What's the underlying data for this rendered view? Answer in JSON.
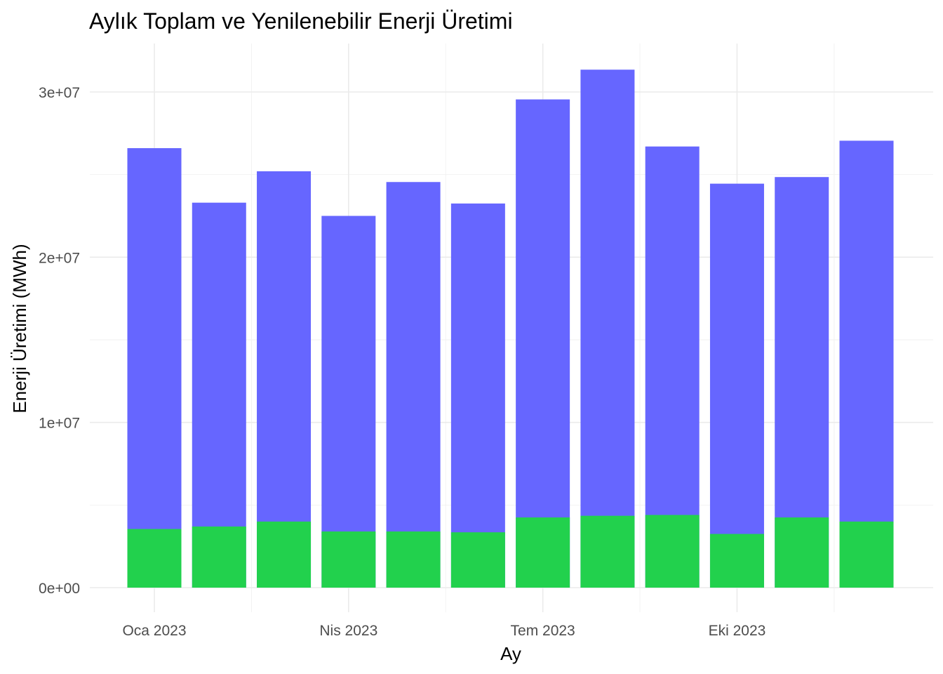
{
  "chart_data": {
    "type": "bar",
    "title": "Aylık Toplam ve Yenilenebilir Enerji Üretimi",
    "xlabel": "Ay",
    "ylabel": "Enerji Üretimi (MWh)",
    "x_tick_labels": [
      "Oca 2023",
      "Nis 2023",
      "Tem 2023",
      "Eki 2023"
    ],
    "y_tick_labels": [
      "0e+00",
      "1e+07",
      "2e+07",
      "3e+07"
    ],
    "y_ticks": [
      0,
      10000000,
      20000000,
      30000000
    ],
    "ylim": [
      -1500000,
      33000000
    ],
    "grid": true,
    "legend": "none",
    "categories": [
      "2023-01",
      "2023-02",
      "2023-03",
      "2023-04",
      "2023-05",
      "2023-06",
      "2023-07",
      "2023-08",
      "2023-09",
      "2023-10",
      "2023-11",
      "2023-12"
    ],
    "series": [
      {
        "values": [
          26600000,
          23300000,
          25200000,
          22500000,
          24550000,
          23250000,
          29550000,
          31350000,
          26700000,
          24450000,
          24850000,
          27050000
        ],
        "color": "#6666ff"
      },
      {
        "values": [
          3550000,
          3700000,
          4000000,
          3400000,
          3400000,
          3350000,
          4250000,
          4350000,
          4400000,
          3250000,
          4250000,
          4000000
        ],
        "color": "#22d14d"
      }
    ]
  }
}
